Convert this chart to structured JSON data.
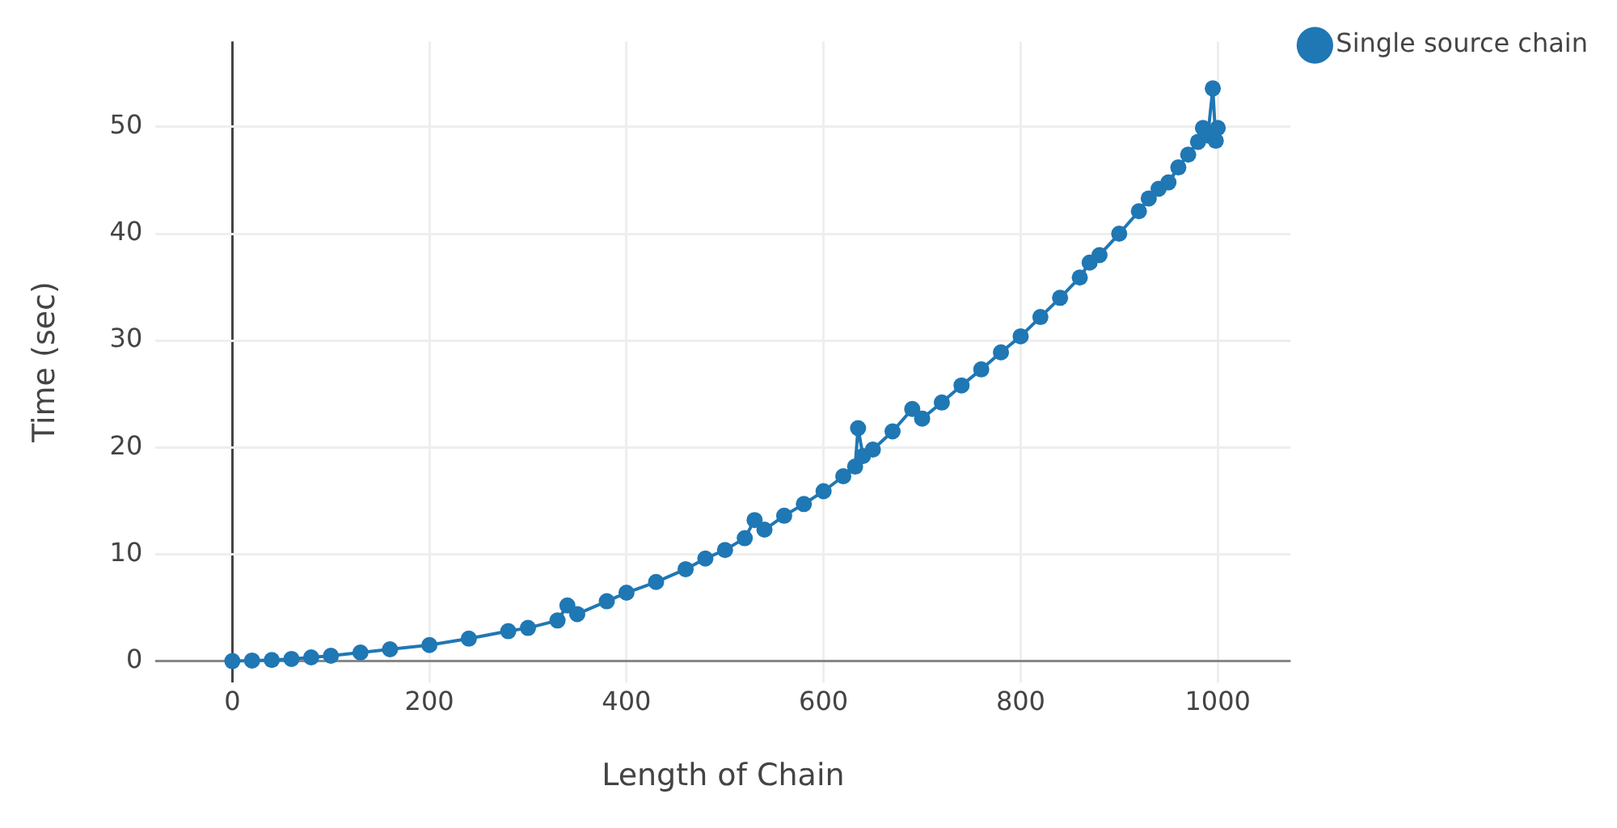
{
  "chart_data": {
    "type": "line",
    "xlabel": "Length of Chain",
    "ylabel": "Time (sec)",
    "xlim": [
      -78,
      1074
    ],
    "ylim": [
      -2,
      58
    ],
    "xticks": [
      0,
      200,
      400,
      600,
      800,
      1000
    ],
    "yticks": [
      0,
      10,
      20,
      30,
      40,
      50
    ],
    "grid": true,
    "legend": "top right",
    "marker": "circle",
    "line_style": "solid",
    "series": [
      {
        "name": "Single source chain",
        "color": "#1f77b4",
        "x": [
          0,
          20,
          40,
          60,
          80,
          100,
          130,
          160,
          200,
          240,
          280,
          300,
          330,
          340,
          350,
          380,
          400,
          430,
          460,
          480,
          500,
          520,
          530,
          540,
          560,
          580,
          600,
          620,
          632,
          635,
          640,
          650,
          670,
          690,
          700,
          720,
          740,
          760,
          780,
          800,
          820,
          840,
          860,
          870,
          880,
          900,
          920,
          930,
          940,
          950,
          960,
          970,
          980,
          985,
          990,
          995,
          998,
          1000
        ],
        "values": [
          0,
          0.05,
          0.1,
          0.2,
          0.35,
          0.5,
          0.8,
          1.1,
          1.5,
          2.1,
          2.8,
          3.1,
          3.8,
          5.2,
          4.4,
          5.6,
          6.4,
          7.4,
          8.6,
          9.6,
          10.4,
          11.5,
          13.2,
          12.3,
          13.6,
          14.7,
          15.9,
          17.3,
          18.2,
          21.8,
          19.2,
          19.8,
          21.5,
          23.6,
          22.7,
          24.2,
          25.8,
          27.3,
          28.9,
          30.4,
          32.2,
          34.0,
          35.9,
          37.3,
          38.0,
          40.0,
          42.1,
          43.3,
          44.2,
          44.8,
          46.2,
          47.4,
          48.6,
          49.9,
          49.2,
          53.6,
          48.7,
          49.9
        ]
      }
    ]
  }
}
